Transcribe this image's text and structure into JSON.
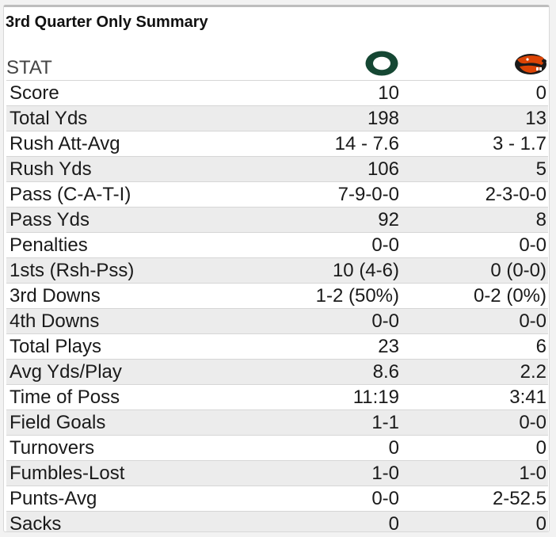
{
  "title": "3rd Quarter Only Summary",
  "header": {
    "stat_label": "STAT",
    "home_logo": "oregon-o-icon",
    "away_logo": "beaver-head-icon"
  },
  "colors": {
    "home_green": "#154733",
    "away_orange": "#dc4405",
    "row_alt": "#ececec"
  },
  "rows": [
    {
      "stat": "Score",
      "home": "10",
      "away": "0"
    },
    {
      "stat": "Total Yds",
      "home": "198",
      "away": "13"
    },
    {
      "stat": "Rush Att-Avg",
      "home": "14 - 7.6",
      "away": "3 - 1.7"
    },
    {
      "stat": "Rush Yds",
      "home": "106",
      "away": "5"
    },
    {
      "stat": "Pass (C-A-T-I)",
      "home": "7-9-0-0",
      "away": "2-3-0-0"
    },
    {
      "stat": "Pass Yds",
      "home": "92",
      "away": "8"
    },
    {
      "stat": "Penalties",
      "home": "0-0",
      "away": "0-0"
    },
    {
      "stat": "1sts (Rsh-Pss)",
      "home": "10 (4-6)",
      "away": "0 (0-0)"
    },
    {
      "stat": "3rd Downs",
      "home": "1-2 (50%)",
      "away": "0-2 (0%)"
    },
    {
      "stat": "4th Downs",
      "home": "0-0",
      "away": "0-0"
    },
    {
      "stat": "Total Plays",
      "home": "23",
      "away": "6"
    },
    {
      "stat": "Avg Yds/Play",
      "home": "8.6",
      "away": "2.2"
    },
    {
      "stat": "Time of Poss",
      "home": "11:19",
      "away": "3:41"
    },
    {
      "stat": "Field Goals",
      "home": "1-1",
      "away": "0-0"
    },
    {
      "stat": "Turnovers",
      "home": "0",
      "away": "0"
    },
    {
      "stat": "Fumbles-Lost",
      "home": "1-0",
      "away": "1-0"
    },
    {
      "stat": "Punts-Avg",
      "home": "0-0",
      "away": "2-52.5"
    },
    {
      "stat": "Sacks",
      "home": "0",
      "away": "0"
    }
  ]
}
